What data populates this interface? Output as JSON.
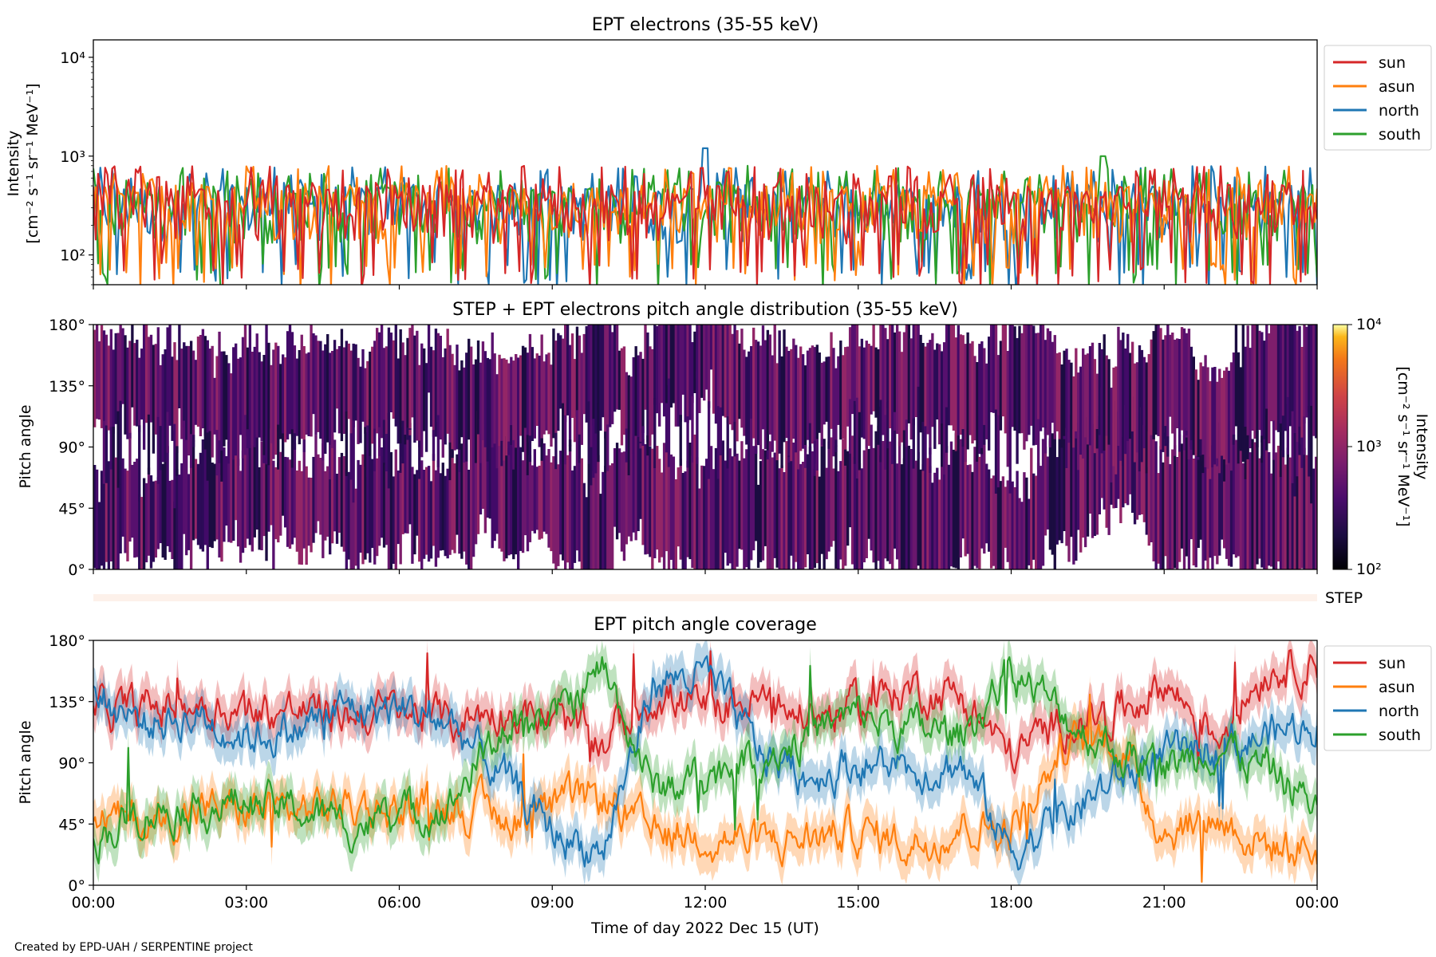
{
  "credit": "Created by EPD-UAH / SERPENTINE project",
  "colors": {
    "sun": "#d62728",
    "asun": "#ff7f0e",
    "north": "#1f77b4",
    "south": "#2ca02c"
  },
  "chart_data": [
    {
      "type": "line",
      "title": "EPT electrons (35-55 keV)",
      "ylabel_line1": "Intensity",
      "ylabel_line2": "[cm⁻² s⁻¹ sr⁻¹ MeV⁻¹]",
      "yscale": "log",
      "ylim": [
        50,
        15000
      ],
      "yticks": [
        {
          "value": 100,
          "label": "10²"
        },
        {
          "value": 1000,
          "label": "10³"
        },
        {
          "value": 10000,
          "label": "10⁴"
        }
      ],
      "x_range_hours": [
        0,
        24
      ],
      "legend": {
        "placement": "outside right",
        "entries": [
          "sun",
          "asun",
          "north",
          "south"
        ]
      },
      "series": [
        {
          "name": "sun",
          "typical_range": [
            60,
            850
          ]
        },
        {
          "name": "asun",
          "typical_range": [
            50,
            800
          ]
        },
        {
          "name": "north",
          "typical_range": [
            50,
            750
          ],
          "peak": {
            "x": 12.0,
            "y": 1200
          }
        },
        {
          "name": "south",
          "typical_range": [
            55,
            800
          ],
          "peak": {
            "x": 19.8,
            "y": 1000
          }
        }
      ],
      "note": "noisy time series, dense fluctuations roughly between 100 and 700"
    },
    {
      "type": "heatmap",
      "title": "STEP + EPT electrons pitch angle distribution (35-55 keV)",
      "ylabel": "Pitch angle",
      "ylim": [
        0,
        180
      ],
      "yticks": [
        "0°",
        "45°",
        "90°",
        "135°",
        "180°"
      ],
      "x_range_hours": [
        0,
        24
      ],
      "colorbar": {
        "label_line1": "Intensity",
        "label_line2": "[cm⁻² s⁻¹ sr⁻¹ MeV⁻¹]",
        "scale": "log",
        "range": [
          100,
          10000
        ],
        "ticks": [
          "10²",
          "10³",
          "10⁴"
        ],
        "colormap": "inferno"
      },
      "value_range_shown": [
        150,
        700
      ]
    },
    {
      "type": "bar",
      "label": "STEP",
      "note": "thin light strip, STEP coverage indicator"
    },
    {
      "type": "line",
      "title": "EPT pitch angle coverage",
      "ylabel": "Pitch angle",
      "ylim": [
        0,
        180
      ],
      "yticks": [
        "0°",
        "45°",
        "90°",
        "135°",
        "180°"
      ],
      "xticks": [
        "00:00",
        "03:00",
        "06:00",
        "09:00",
        "12:00",
        "15:00",
        "18:00",
        "21:00",
        "00:00"
      ],
      "xlabel": "Time of day 2022 Dec 15 (UT)",
      "x_range_hours": [
        0,
        24
      ],
      "legend": {
        "placement": "outside right",
        "entries": [
          "sun",
          "asun",
          "north",
          "south"
        ]
      },
      "series": [
        {
          "name": "sun",
          "values_hourly": [
            130,
            128,
            135,
            130,
            128,
            125,
            128,
            120,
            130,
            120,
            105,
            140,
            130,
            135,
            125,
            130,
            145,
            140,
            95,
            120,
            125,
            150,
            110,
            160,
            165
          ]
        },
        {
          "name": "asun",
          "values_hourly": [
            50,
            45,
            55,
            55,
            55,
            60,
            55,
            60,
            50,
            55,
            65,
            35,
            40,
            30,
            35,
            40,
            30,
            45,
            40,
            100,
            110,
            40,
            50,
            30,
            25
          ]
        },
        {
          "name": "north",
          "values_hourly": [
            140,
            120,
            125,
            110,
            115,
            130,
            130,
            120,
            80,
            40,
            25,
            150,
            155,
            100,
            80,
            90,
            85,
            90,
            25,
            50,
            75,
            95,
            100,
            110,
            120
          ]
        },
        {
          "name": "south",
          "values_hourly": [
            35,
            55,
            60,
            60,
            55,
            45,
            50,
            60,
            115,
            120,
            160,
            70,
            80,
            95,
            110,
            125,
            115,
            110,
            160,
            125,
            100,
            85,
            105,
            85,
            60
          ]
        }
      ]
    }
  ]
}
